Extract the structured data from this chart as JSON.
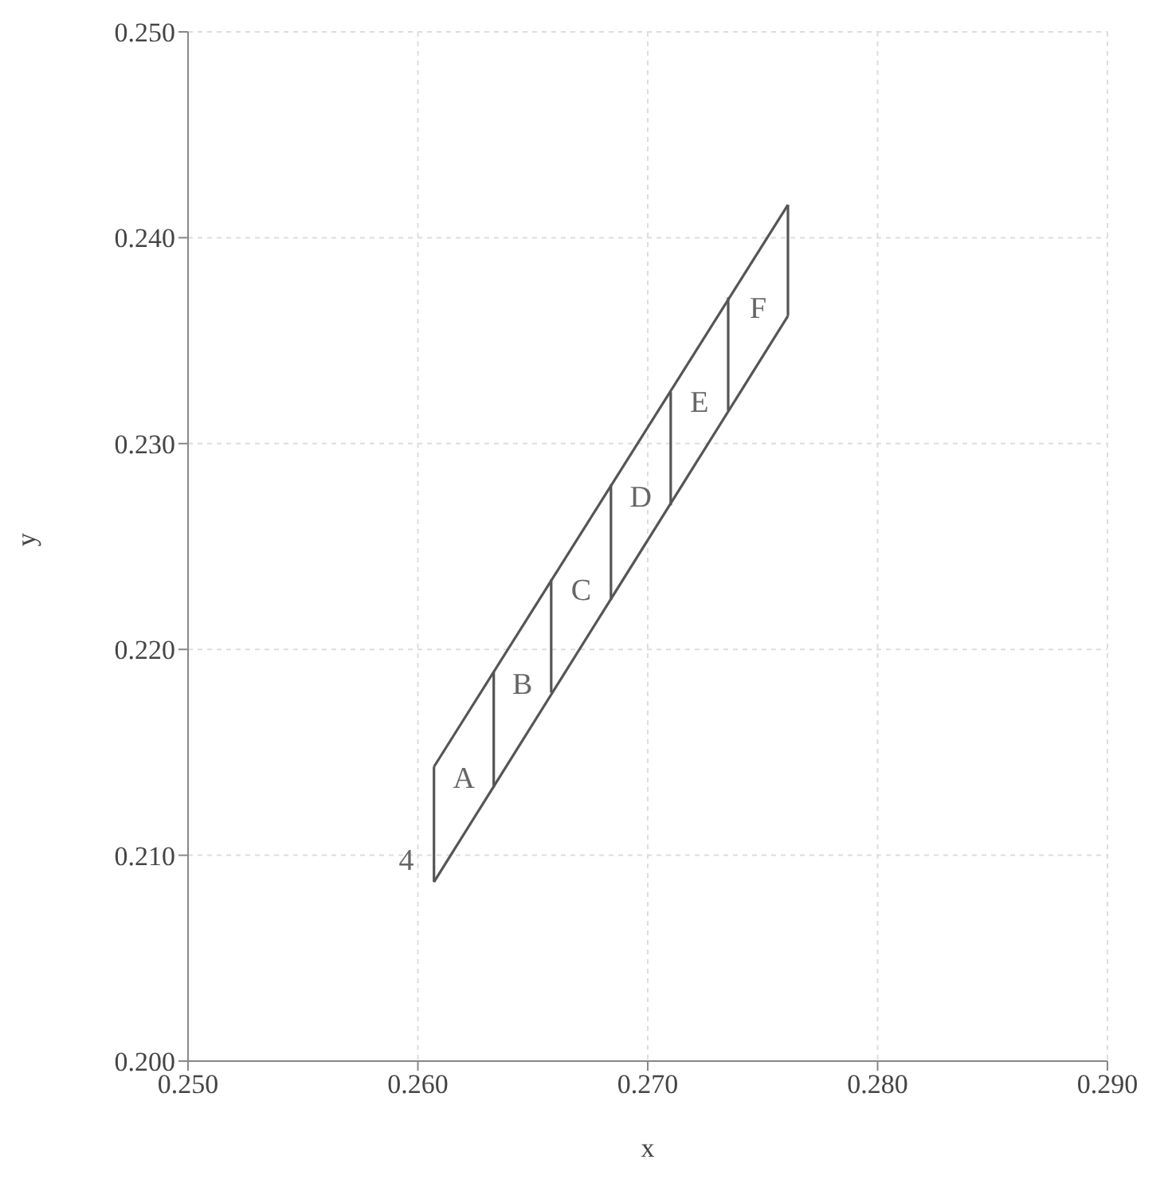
{
  "chart_data": {
    "type": "line",
    "xlabel": "x",
    "ylabel": "y",
    "xlim": [
      0.25,
      0.29
    ],
    "ylim": [
      0.2,
      0.25
    ],
    "xticks": [
      {
        "value": 0.25,
        "label": "0.250"
      },
      {
        "value": 0.26,
        "label": "0.260"
      },
      {
        "value": 0.27,
        "label": "0.270"
      },
      {
        "value": 0.28,
        "label": "0.280"
      },
      {
        "value": 0.29,
        "label": "0.290"
      }
    ],
    "yticks": [
      {
        "value": 0.2,
        "label": "0.200"
      },
      {
        "value": 0.21,
        "label": "0.210"
      },
      {
        "value": 0.22,
        "label": "0.220"
      },
      {
        "value": 0.23,
        "label": "0.230"
      },
      {
        "value": 0.24,
        "label": "0.240"
      },
      {
        "value": 0.25,
        "label": "0.250"
      }
    ],
    "grid": true,
    "marker": "none",
    "line_style": "solid",
    "series": [
      {
        "color": "#555555",
        "x": [
          0.2607,
          0.2761
        ],
        "values": [
          0.2143,
          0.2416
        ]
      },
      {
        "color": "#555555",
        "x": [
          0.2607,
          0.2761
        ],
        "values": [
          0.2087,
          0.2362
        ]
      },
      {
        "color": "#555555",
        "x": [
          0.2607,
          0.2607
        ],
        "values": [
          0.2143,
          0.2087
        ]
      },
      {
        "color": "#555555",
        "x": [
          0.2633,
          0.2633
        ],
        "values": [
          0.2189,
          0.2133
        ]
      },
      {
        "color": "#555555",
        "x": [
          0.2658,
          0.2658
        ],
        "values": [
          0.2234,
          0.2179
        ]
      },
      {
        "color": "#555555",
        "x": [
          0.2684,
          0.2684
        ],
        "values": [
          0.228,
          0.2224
        ]
      },
      {
        "color": "#555555",
        "x": [
          0.271,
          0.271
        ],
        "values": [
          0.2325,
          0.227
        ]
      },
      {
        "color": "#555555",
        "x": [
          0.2735,
          0.2735
        ],
        "values": [
          0.2371,
          0.2316
        ]
      },
      {
        "color": "#555555",
        "x": [
          0.2761,
          0.2761
        ],
        "values": [
          0.2416,
          0.2362
        ]
      }
    ],
    "annotations": [
      "A",
      "B",
      "C",
      "D",
      "E",
      "F",
      "4"
    ]
  }
}
